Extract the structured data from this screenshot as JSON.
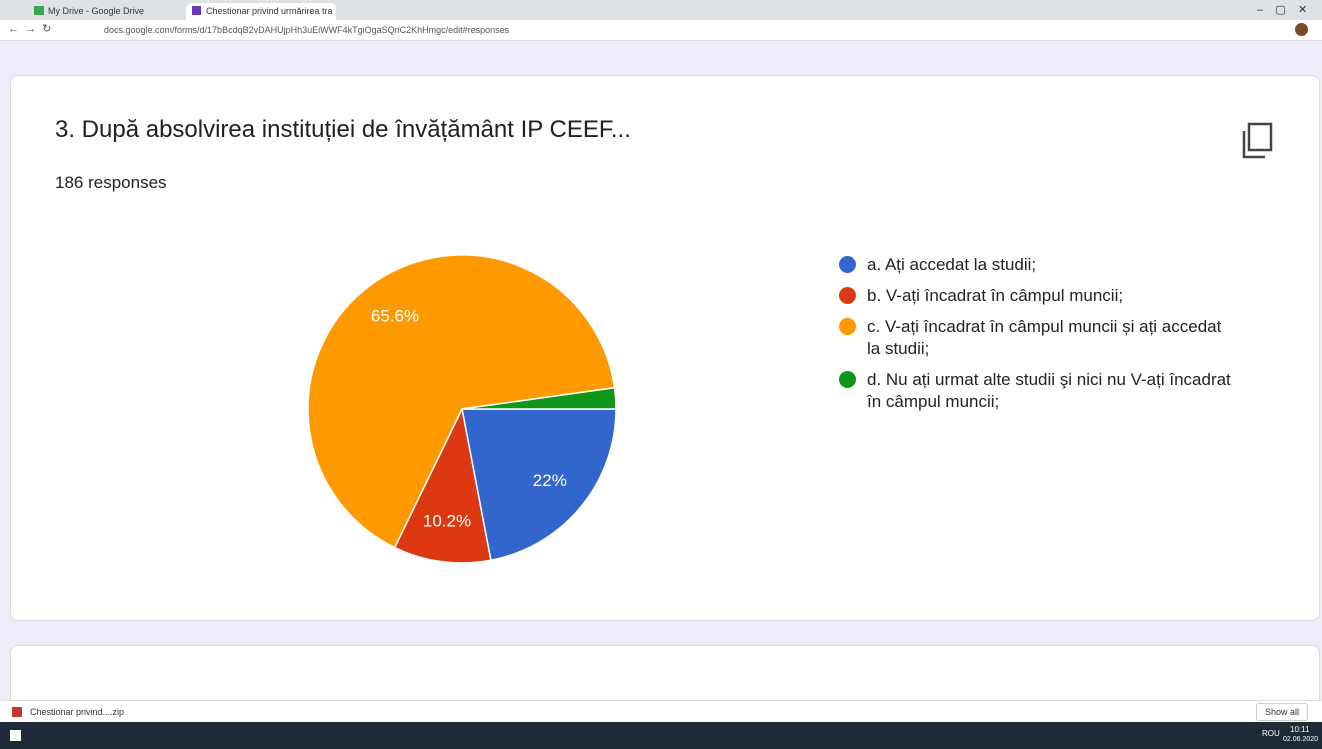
{
  "browser": {
    "tabs": [
      "My Drive - Google Drive",
      "Chestionar privind urmărirea tra"
    ],
    "url": "docs.google.com/forms/d/17bBcdqB2vDAHUjpHh3uEiWWF4kTgiOgaSQnC2KhHmgc/edit#responses"
  },
  "chart_data": {
    "type": "pie",
    "title": "3. După absolvirea instituției de învățământ IP CEEF...",
    "subtitle": "186 responses",
    "categories": [
      "a. Ați accedat la studii;",
      "b. V-ați încadrat în câmpul muncii;",
      "c. V-ați încadrat în câmpul muncii și ați accedat la studii;",
      "d. Nu ați urmat alte studii şi nici nu V-ați încadrat în câmpul muncii;"
    ],
    "values": [
      22,
      10.2,
      65.6,
      2.2
    ],
    "value_labels": [
      "22%",
      "10.2%",
      "65.6%",
      null
    ],
    "colors": [
      "#3366cc",
      "#dc3912",
      "#ff9900",
      "#109618"
    ]
  },
  "downloads": {
    "file": "Chestionar privind....zip",
    "button": "Show all"
  },
  "taskbar": {
    "language": "ROU",
    "time": "10:11",
    "date": "02.06.2020"
  }
}
